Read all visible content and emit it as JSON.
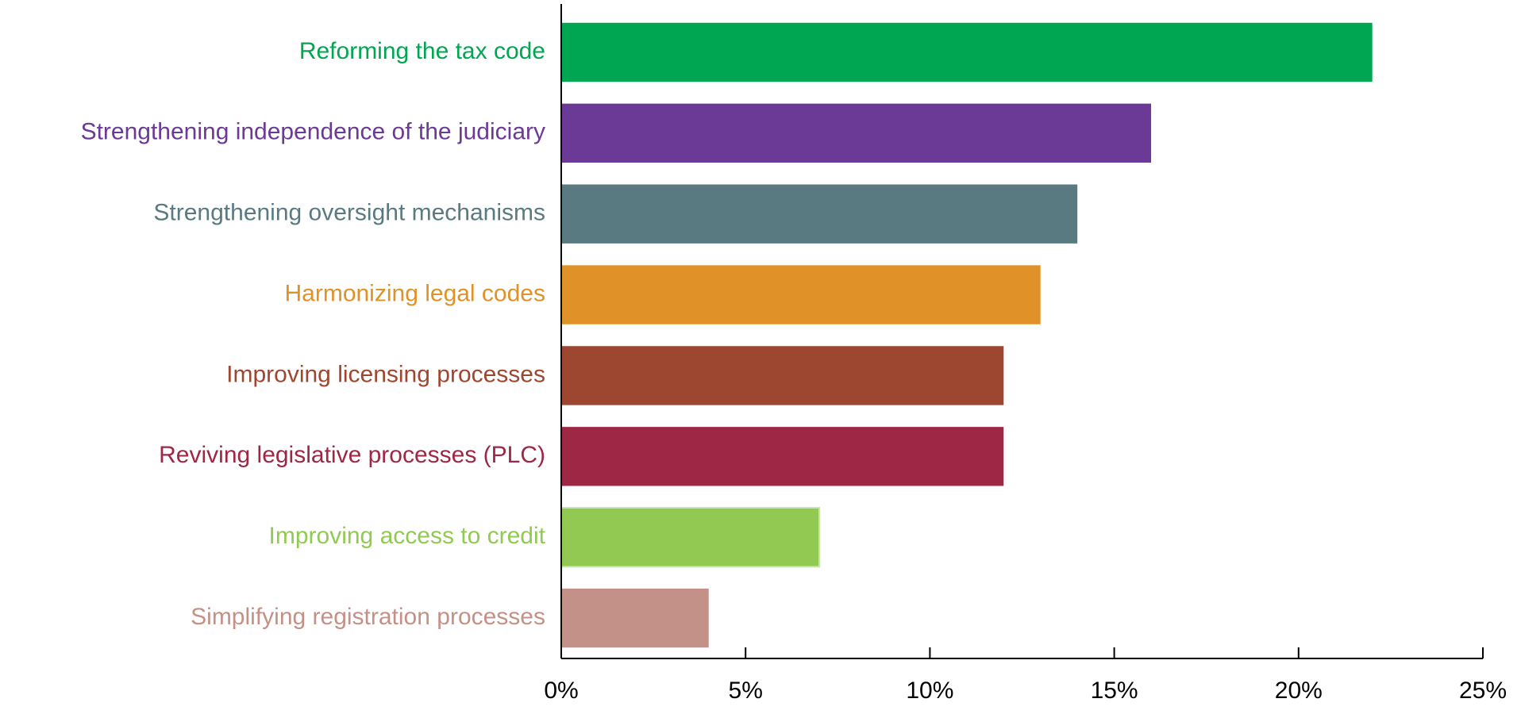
{
  "chart_data": {
    "type": "bar",
    "orientation": "horizontal",
    "categories": [
      "Reforming the tax code",
      "Strengthening independence of the judiciary",
      "Strengthening oversight mechanisms",
      "Harmonizing legal codes",
      "Improving licensing processes",
      "Reviving legislative processes (PLC)",
      "Improving access to credit",
      "Simplifying registration processes"
    ],
    "values": [
      22,
      16,
      14,
      13,
      12,
      12,
      7,
      4
    ],
    "colors": [
      "#00a651",
      "#6b3a96",
      "#5a7a82",
      "#e09228",
      "#9e4730",
      "#9e2745",
      "#92c953",
      "#c49188"
    ],
    "xlim": [
      0,
      25
    ],
    "xticks": [
      {
        "value": 0,
        "label": "0%"
      },
      {
        "value": 5,
        "label": "5%"
      },
      {
        "value": 10,
        "label": "10%"
      },
      {
        "value": 15,
        "label": "15%"
      },
      {
        "value": 20,
        "label": "20%"
      },
      {
        "value": 25,
        "label": "25%"
      }
    ],
    "grid": false
  }
}
